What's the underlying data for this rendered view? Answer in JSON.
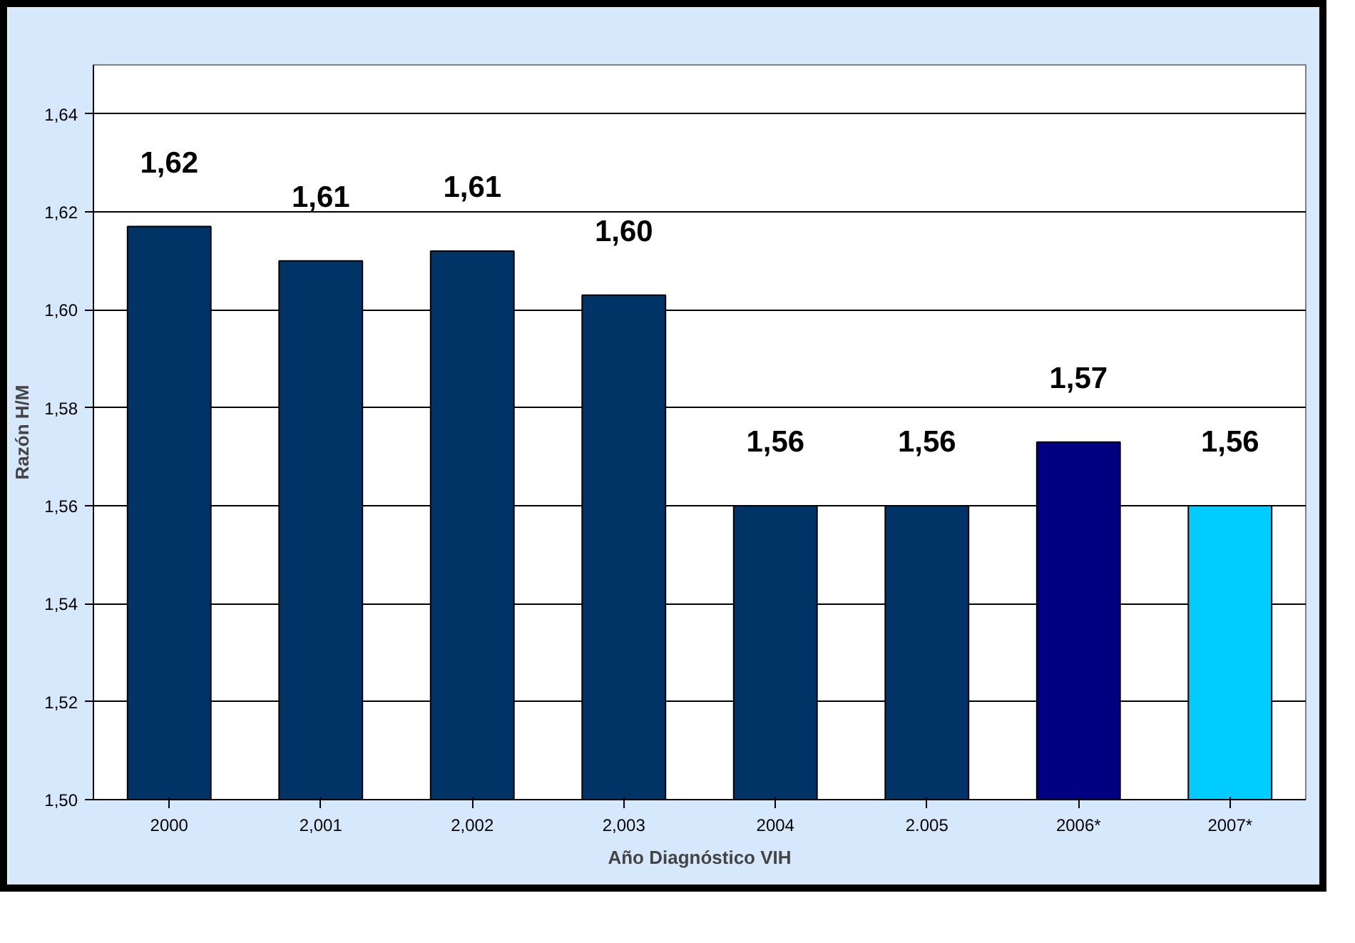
{
  "chart_data": {
    "type": "bar",
    "xlabel": "Año Diagnóstico VIH",
    "ylabel": "Razón H/M",
    "categories": [
      "2000",
      "2,001",
      "2,002",
      "2,003",
      "2004",
      "2.005",
      "2006*",
      "2007*"
    ],
    "values": [
      1.617,
      1.61,
      1.612,
      1.603,
      1.56,
      1.56,
      1.573,
      1.56
    ],
    "colors": [
      "#003366",
      "#003366",
      "#003366",
      "#003366",
      "#003366",
      "#003366",
      "#000080",
      "#00ccff"
    ],
    "value_labels": [
      "1,62",
      "1,61",
      "1,61",
      "1,60",
      "1,56",
      "1,56",
      "1,57",
      "1,56"
    ],
    "ylim": [
      1.5,
      1.65
    ],
    "yticks": [
      {
        "value": 1.5,
        "label": "1,50"
      },
      {
        "value": 1.52,
        "label": "1,52"
      },
      {
        "value": 1.54,
        "label": "1,54"
      },
      {
        "value": 1.56,
        "label": "1,56"
      },
      {
        "value": 1.58,
        "label": "1,58"
      },
      {
        "value": 1.6,
        "label": "1,60"
      },
      {
        "value": 1.62,
        "label": "1,62"
      },
      {
        "value": 1.64,
        "label": "1,64"
      }
    ],
    "grid": "y"
  }
}
